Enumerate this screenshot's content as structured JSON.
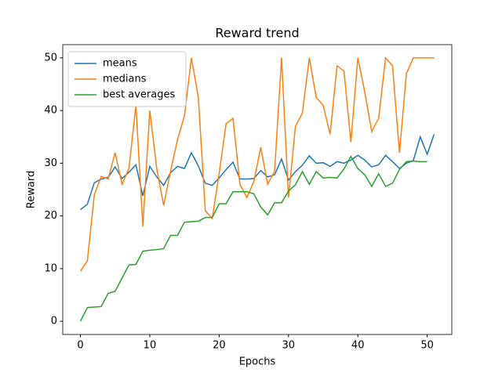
{
  "chart_data": {
    "type": "line",
    "title": "Reward trend",
    "xlabel": "Epochs",
    "ylabel": "Reward",
    "x": [
      0,
      1,
      2,
      3,
      4,
      5,
      6,
      7,
      8,
      9,
      10,
      11,
      12,
      13,
      14,
      15,
      16,
      17,
      18,
      19,
      20,
      21,
      22,
      23,
      24,
      25,
      26,
      27,
      28,
      29,
      30,
      31,
      32,
      33,
      34,
      35,
      36,
      37,
      38,
      39,
      40,
      41,
      42,
      43,
      44,
      45,
      46,
      47,
      48,
      49,
      50,
      51
    ],
    "series": [
      {
        "name": "means",
        "color": "#1f77b4",
        "values": [
          21.2,
          22.2,
          26.3,
          27,
          27.3,
          29.3,
          27.1,
          28.3,
          29.7,
          23.8,
          29.4,
          27.4,
          25.8,
          28.2,
          29.4,
          29,
          32,
          29.5,
          26.2,
          25.8,
          27.2,
          28.8,
          30.2,
          27,
          27,
          27.1,
          28.6,
          27.4,
          27.8,
          30.8,
          26.8,
          28.4,
          29.6,
          31.4,
          30,
          30.1,
          29.4,
          30.3,
          30,
          30.6,
          31.5,
          30.6,
          29.3,
          29.7,
          31.5,
          30.3,
          29,
          30,
          30.5,
          35,
          31.7,
          35.5
        ]
      },
      {
        "name": "medians",
        "color": "#ff7f0e",
        "values": [
          9.5,
          11.5,
          24,
          27.5,
          27,
          32,
          26,
          29,
          41,
          18,
          40,
          29,
          22,
          28.5,
          34.5,
          39,
          50,
          42.5,
          21,
          19.5,
          28,
          37.5,
          38.5,
          26,
          23.5,
          26.5,
          33,
          26,
          28.5,
          50,
          23.5,
          37,
          39.5,
          50,
          42.5,
          41,
          35.5,
          48.5,
          47.5,
          34,
          50,
          43.5,
          36,
          38.5,
          50,
          48.5,
          32,
          47,
          50,
          50,
          50,
          50
        ]
      },
      {
        "name": "best averages",
        "color": "#2ca02c",
        "values": [
          0,
          2.6,
          2.7,
          2.8,
          5.3,
          5.7,
          8.2,
          10.7,
          10.8,
          13.3,
          13.5,
          13.6,
          13.8,
          16.3,
          16.3,
          18.8,
          18.9,
          19,
          19.7,
          19.7,
          22.3,
          22.3,
          24.6,
          24.6,
          24.6,
          24.2,
          21.7,
          20.2,
          22.5,
          22.5,
          24.7,
          25.9,
          28.4,
          26,
          28.4,
          27.2,
          27.3,
          27.2,
          28.9,
          31.3,
          29,
          27.8,
          25.6,
          28,
          25.6,
          26.2,
          28.8,
          30.3,
          30.4,
          30.3,
          30.3,
          null
        ]
      }
    ],
    "xlim": [
      -2.55,
      53.55
    ],
    "xticks": [
      0,
      10,
      20,
      30,
      40,
      50
    ],
    "ylim": [
      -2.5,
      52.5
    ],
    "yticks": [
      0,
      10,
      20,
      30,
      40,
      50
    ],
    "legend": "upper left",
    "grid": false
  }
}
